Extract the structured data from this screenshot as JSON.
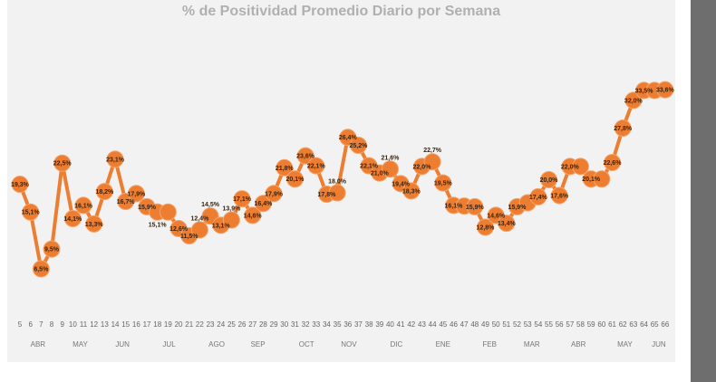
{
  "chart_data": {
    "type": "line",
    "title": "% de Positividad Promedio Diario por Semana",
    "xlabel": "",
    "ylabel": "",
    "color": "#ed7d31",
    "x": [
      5,
      6,
      7,
      8,
      9,
      10,
      11,
      12,
      13,
      14,
      15,
      16,
      17,
      18,
      19,
      20,
      21,
      22,
      23,
      24,
      25,
      26,
      27,
      28,
      29,
      30,
      31,
      32,
      33,
      34,
      35,
      36,
      37,
      38,
      39,
      40,
      41,
      42,
      43,
      44,
      45,
      46,
      47,
      48,
      49,
      50,
      51,
      52,
      53,
      54,
      55,
      56,
      57,
      58,
      59,
      60,
      61,
      62,
      63,
      64,
      65,
      66
    ],
    "values": [
      19.3,
      15.1,
      6.5,
      9.5,
      22.5,
      14.1,
      16.1,
      13.3,
      18.2,
      23.1,
      16.7,
      17.9,
      15.9,
      15.1,
      15.1,
      12.6,
      11.5,
      12.4,
      14.5,
      13.1,
      13.9,
      17.1,
      14.6,
      16.4,
      17.9,
      21.8,
      20.1,
      23.6,
      22.1,
      17.8,
      18.0,
      26.4,
      25.2,
      22.1,
      21.0,
      21.6,
      19.4,
      18.3,
      22.0,
      22.7,
      19.5,
      16.1,
      16.0,
      15.9,
      12.8,
      14.6,
      13.4,
      15.9,
      16.5,
      17.4,
      20.0,
      17.6,
      22.0,
      22.0,
      20.1,
      20.1,
      22.6,
      27.8,
      32.0,
      33.5,
      33.5,
      33.6
    ],
    "data_labels": [
      "19,3%",
      "15,1%",
      "6,5%",
      "9,5%",
      "22,5%",
      "14,1%",
      "16,1%",
      "13,3%",
      "18,2%",
      "23,1%",
      "16,7%",
      "17,9%",
      "15,9%",
      "15,1%",
      "",
      "12,6%",
      "11,5%",
      "12,4%",
      "14,5%",
      "13,1%",
      "13,9%",
      "17,1%",
      "14,6%",
      "16,4%",
      "17,9%",
      "21,8%",
      "20,1%",
      "23,6%",
      "22,1%",
      "17,8%",
      "18,0%",
      "26,4%",
      "25,2%",
      "22,1%",
      "21,0%",
      "21,6%",
      "19,4%",
      "18,3%",
      "22,0%",
      "22,7%",
      "19,5%",
      "16,1%",
      "",
      "15,9%",
      "12,8%",
      "14,6%",
      "13,4%",
      "15,9%",
      "",
      "17,4%",
      "20,0%",
      "17,6%",
      "22,0%",
      "",
      "20,1%",
      "",
      "22,6%",
      "27,8%",
      "32,0%",
      "33,5%",
      "",
      "33,6%"
    ],
    "months": [
      {
        "label": "ABR",
        "week": 6.7
      },
      {
        "label": "MAY",
        "week": 10.7
      },
      {
        "label": "JUN",
        "week": 14.7
      },
      {
        "label": "JUL",
        "week": 19.1
      },
      {
        "label": "AGO",
        "week": 23.6
      },
      {
        "label": "SEP",
        "week": 27.5
      },
      {
        "label": "OCT",
        "week": 32.1
      },
      {
        "label": "NOV",
        "week": 36.1
      },
      {
        "label": "DIC",
        "week": 40.6
      },
      {
        "label": "ENE",
        "week": 45
      },
      {
        "label": "FEB",
        "week": 49.4
      },
      {
        "label": "MAR",
        "week": 53.4
      },
      {
        "label": "ABR",
        "week": 57.8
      },
      {
        "label": "MAY",
        "week": 62.2
      },
      {
        "label": "JUN",
        "week": 65.4
      }
    ],
    "ylim": [
      0,
      40
    ],
    "grid": false,
    "legend": "none"
  }
}
